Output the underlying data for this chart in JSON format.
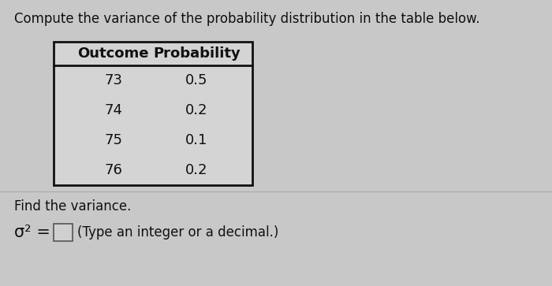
{
  "title": "Compute the variance of the probability distribution in the table below.",
  "col_headers": [
    "Outcome",
    "Probability"
  ],
  "rows": [
    [
      "73",
      "0.5"
    ],
    [
      "74",
      "0.2"
    ],
    [
      "75",
      "0.1"
    ],
    [
      "76",
      "0.2"
    ]
  ],
  "find_text": "Find the variance.",
  "formula_prefix": "σ² =",
  "formula_suffix": "(Type an integer or a decimal.)",
  "bg_color": "#c8c8c8",
  "text_color": "#111111",
  "header_fontsize": 12,
  "body_fontsize": 12,
  "title_fontsize": 12
}
